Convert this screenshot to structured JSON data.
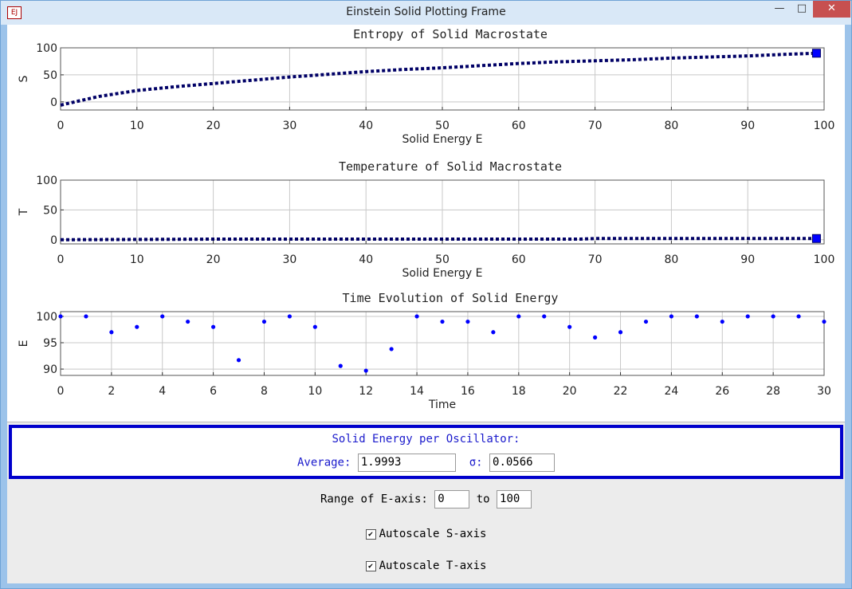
{
  "window": {
    "title": "Einstein Solid Plotting Frame"
  },
  "chart_data": [
    {
      "type": "line",
      "title": "Entropy of Solid Macrostate",
      "xlabel": "Solid Energy E",
      "ylabel": "S",
      "xlim": [
        0,
        100
      ],
      "ylim": [
        -15,
        100
      ],
      "xticks": [
        0,
        10,
        20,
        30,
        40,
        50,
        60,
        70,
        80,
        90,
        100
      ],
      "yticks": [
        0,
        50,
        100
      ],
      "grid": true,
      "series": [
        {
          "color": "#000066",
          "line_style": "dotted",
          "x": [
            0,
            5,
            10,
            15,
            20,
            25,
            30,
            35,
            40,
            45,
            50,
            55,
            60,
            65,
            70,
            75,
            80,
            85,
            90,
            95,
            99
          ],
          "values": [
            -6,
            10,
            21,
            28,
            34,
            40,
            46,
            51,
            56,
            60,
            63,
            67,
            71,
            74,
            76,
            78,
            81,
            83,
            85,
            88,
            90
          ]
        },
        {
          "color": "#0000ff",
          "marker": "square",
          "x": [
            99
          ],
          "values": [
            90
          ]
        }
      ]
    },
    {
      "type": "line",
      "title": "Temperature of Solid Macrostate",
      "xlabel": "Solid Energy E",
      "ylabel": "T",
      "xlim": [
        0,
        100
      ],
      "ylim": [
        -7,
        100
      ],
      "xticks": [
        0,
        10,
        20,
        30,
        40,
        50,
        60,
        70,
        80,
        90,
        100
      ],
      "yticks": [
        0,
        50,
        100
      ],
      "grid": true,
      "series": [
        {
          "color": "#000066",
          "line_style": "dotted",
          "x": [
            0,
            10,
            20,
            30,
            40,
            50,
            60,
            68,
            70,
            80,
            90,
            99
          ],
          "values": [
            0,
            0.5,
            1,
            1,
            1,
            1,
            1,
            1,
            2,
            2,
            2,
            2
          ]
        },
        {
          "color": "#0000ff",
          "marker": "square",
          "x": [
            99
          ],
          "values": [
            2
          ]
        }
      ]
    },
    {
      "type": "scatter",
      "title": "Time Evolution of Solid Energy",
      "xlabel": "Time",
      "ylabel": "E",
      "xlim": [
        0,
        30
      ],
      "ylim": [
        88.8,
        100.9
      ],
      "xticks": [
        0,
        2,
        4,
        6,
        8,
        10,
        12,
        14,
        16,
        18,
        20,
        22,
        24,
        26,
        28,
        30
      ],
      "yticks": [
        90,
        95,
        100
      ],
      "grid": true,
      "series": [
        {
          "color": "#0000ff",
          "marker": "circle",
          "x": [
            0,
            1,
            2,
            3,
            4,
            5,
            6,
            7,
            8,
            9,
            10,
            11,
            12,
            13,
            14,
            15,
            16,
            17,
            18,
            19,
            20,
            21,
            22,
            23,
            24,
            25,
            26,
            27,
            28,
            29,
            30
          ],
          "values": [
            100,
            100,
            97,
            98,
            100,
            99,
            98,
            91.7,
            99,
            100,
            98,
            90.6,
            89.7,
            93.8,
            100,
            99,
            99,
            97,
            100,
            100,
            98,
            96,
            97,
            99,
            100,
            100,
            99,
            100,
            100,
            100,
            99
          ]
        }
      ]
    }
  ],
  "panel": {
    "heading": "Solid Energy per Oscillator:",
    "average_label": "Average:",
    "average": "1.9993",
    "sigma_label": "σ:",
    "sigma": "0.0566",
    "range_label": "Range of E-axis:",
    "range_from": "0",
    "range_to_label": "to",
    "range_to": "100",
    "autoscale_s": "Autoscale S-axis",
    "autoscale_t": "Autoscale T-axis"
  }
}
